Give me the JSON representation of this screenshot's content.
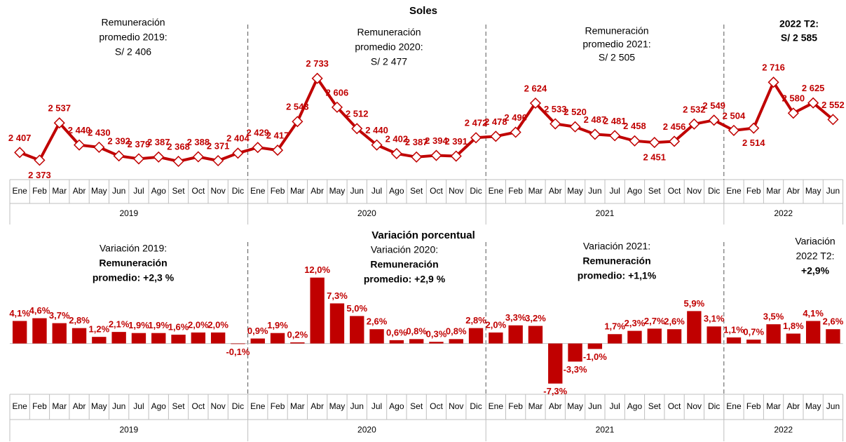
{
  "chart_data": [
    {
      "type": "line",
      "title": "Soles",
      "color": "#c00000",
      "groups": [
        {
          "label": "2019",
          "categories": [
            "Ene",
            "Feb",
            "Mar",
            "Abr",
            "May",
            "Jun",
            "Jul",
            "Ago",
            "Set",
            "Oct",
            "Nov",
            "Dic"
          ]
        },
        {
          "label": "2020",
          "categories": [
            "Ene",
            "Feb",
            "Mar",
            "Abr",
            "May",
            "Jun",
            "Jul",
            "Ago",
            "Set",
            "Oct",
            "Nov",
            "Dic"
          ]
        },
        {
          "label": "2021",
          "categories": [
            "Ene",
            "Feb",
            "Mar",
            "Abr",
            "May",
            "Jun",
            "Jul",
            "Ago",
            "Set",
            "Oct",
            "Nov",
            "Dic"
          ]
        },
        {
          "label": "2022",
          "categories": [
            "Ene",
            "Feb",
            "Mar",
            "Abr",
            "May",
            "Jun"
          ]
        }
      ],
      "values": [
        2407,
        2373,
        2537,
        2440,
        2430,
        2392,
        2379,
        2387,
        2368,
        2388,
        2371,
        2404,
        2429,
        2417,
        2543,
        2733,
        2606,
        2512,
        2440,
        2402,
        2387,
        2394,
        2391,
        2472,
        2478,
        2496,
        2624,
        2533,
        2520,
        2487,
        2481,
        2458,
        2451,
        2456,
        2532,
        2549,
        2504,
        2514,
        2716,
        2580,
        2625,
        2552
      ],
      "value_labels": [
        "2 407",
        "2 373",
        "2 537",
        "2 440",
        "2 430",
        "2 392",
        "2 379",
        "2 387",
        "2 368",
        "2 388",
        "2 371",
        "2 404",
        "2 429",
        "2 417",
        "2 543",
        "2 733",
        "2 606",
        "2 512",
        "2 440",
        "2 402",
        "2 387",
        "2 394",
        "2 391",
        "2 472",
        "2 478",
        "2 496",
        "2 624",
        "2 533",
        "2 520",
        "2 487",
        "2 481",
        "2 458",
        "2 451",
        "2 456",
        "2 532",
        "2 549",
        "2 504",
        "2 514",
        "2 716",
        "2 580",
        "2 625",
        "2 552"
      ],
      "ylim": [
        2300,
        2800
      ],
      "annotations": [
        {
          "lines": [
            "Remuneración",
            "promedio 2019:",
            "S/ 2 406"
          ],
          "highlight": []
        },
        {
          "lines": [
            "Remuneración",
            "promedio 2020:",
            "S/ 2 477"
          ],
          "highlight": []
        },
        {
          "lines": [
            "Remuneración",
            "promedio 2021:",
            "S/ 2 505"
          ],
          "highlight": []
        },
        {
          "lines": [
            "2022 T2:",
            "S/ 2 585"
          ],
          "highlight": []
        }
      ]
    },
    {
      "type": "bar",
      "title": "Variación porcentual",
      "color": "#c00000",
      "groups": [
        {
          "label": "2019",
          "categories": [
            "Ene",
            "Feb",
            "Mar",
            "Abr",
            "May",
            "Jun",
            "Jul",
            "Ago",
            "Set",
            "Oct",
            "Nov",
            "Dic"
          ]
        },
        {
          "label": "2020",
          "categories": [
            "Ene",
            "Feb",
            "Mar",
            "Abr",
            "May",
            "Jun",
            "Jul",
            "Ago",
            "Set",
            "Oct",
            "Nov",
            "Dic"
          ]
        },
        {
          "label": "2021",
          "categories": [
            "Ene",
            "Feb",
            "Mar",
            "Abr",
            "May",
            "Jun",
            "Jul",
            "Ago",
            "Set",
            "Oct",
            "Nov",
            "Dic"
          ]
        },
        {
          "label": "2022",
          "categories": [
            "Ene",
            "Feb",
            "Mar",
            "Abr",
            "May",
            "Jun"
          ]
        }
      ],
      "values": [
        4.1,
        4.6,
        3.7,
        2.8,
        1.2,
        2.1,
        1.9,
        1.9,
        1.6,
        2.0,
        2.0,
        -0.1,
        0.9,
        1.9,
        0.2,
        12.0,
        7.3,
        5.0,
        2.6,
        0.6,
        0.8,
        0.3,
        0.8,
        2.8,
        2.0,
        3.3,
        3.2,
        -7.3,
        -3.3,
        -1.0,
        1.7,
        2.3,
        2.7,
        2.6,
        5.9,
        3.1,
        1.1,
        0.7,
        3.5,
        1.8,
        4.1,
        2.6
      ],
      "value_labels": [
        "4,1%",
        "4,6%",
        "3,7%",
        "2,8%",
        "1,2%",
        "2,1%",
        "1,9%",
        "1,9%",
        "1,6%",
        "2,0%",
        "2,0%",
        "-0,1%",
        "0,9%",
        "1,9%",
        "0,2%",
        "12,0%",
        "7,3%",
        "5,0%",
        "2,6%",
        "0,6%",
        "0,8%",
        "0,3%",
        "0,8%",
        "2,8%",
        "2,0%",
        "3,3%",
        "3,2%",
        "-7,3%",
        "-3,3%",
        "-1,0%",
        "1,7%",
        "2,3%",
        "2,7%",
        "2,6%",
        "5,9%",
        "3,1%",
        "1,1%",
        "0,7%",
        "3,5%",
        "1,8%",
        "4,1%",
        "2,6%"
      ],
      "ylim": [
        -9,
        14
      ],
      "annotations": [
        {
          "lines": [
            "Variación 2019:"
          ],
          "highlight": [
            "Remuneración",
            "promedio: +2,3 %"
          ]
        },
        {
          "lines": [
            "Variación 2020:"
          ],
          "highlight": [
            "Remuneración",
            "promedio: +2,9 %"
          ]
        },
        {
          "lines": [
            "Variación 2021:"
          ],
          "highlight": [
            "Remuneración",
            "promedio: +1,1%"
          ]
        },
        {
          "lines": [
            "Variación",
            "2022 T2:"
          ],
          "highlight": [
            "+2,9%"
          ]
        }
      ]
    }
  ]
}
